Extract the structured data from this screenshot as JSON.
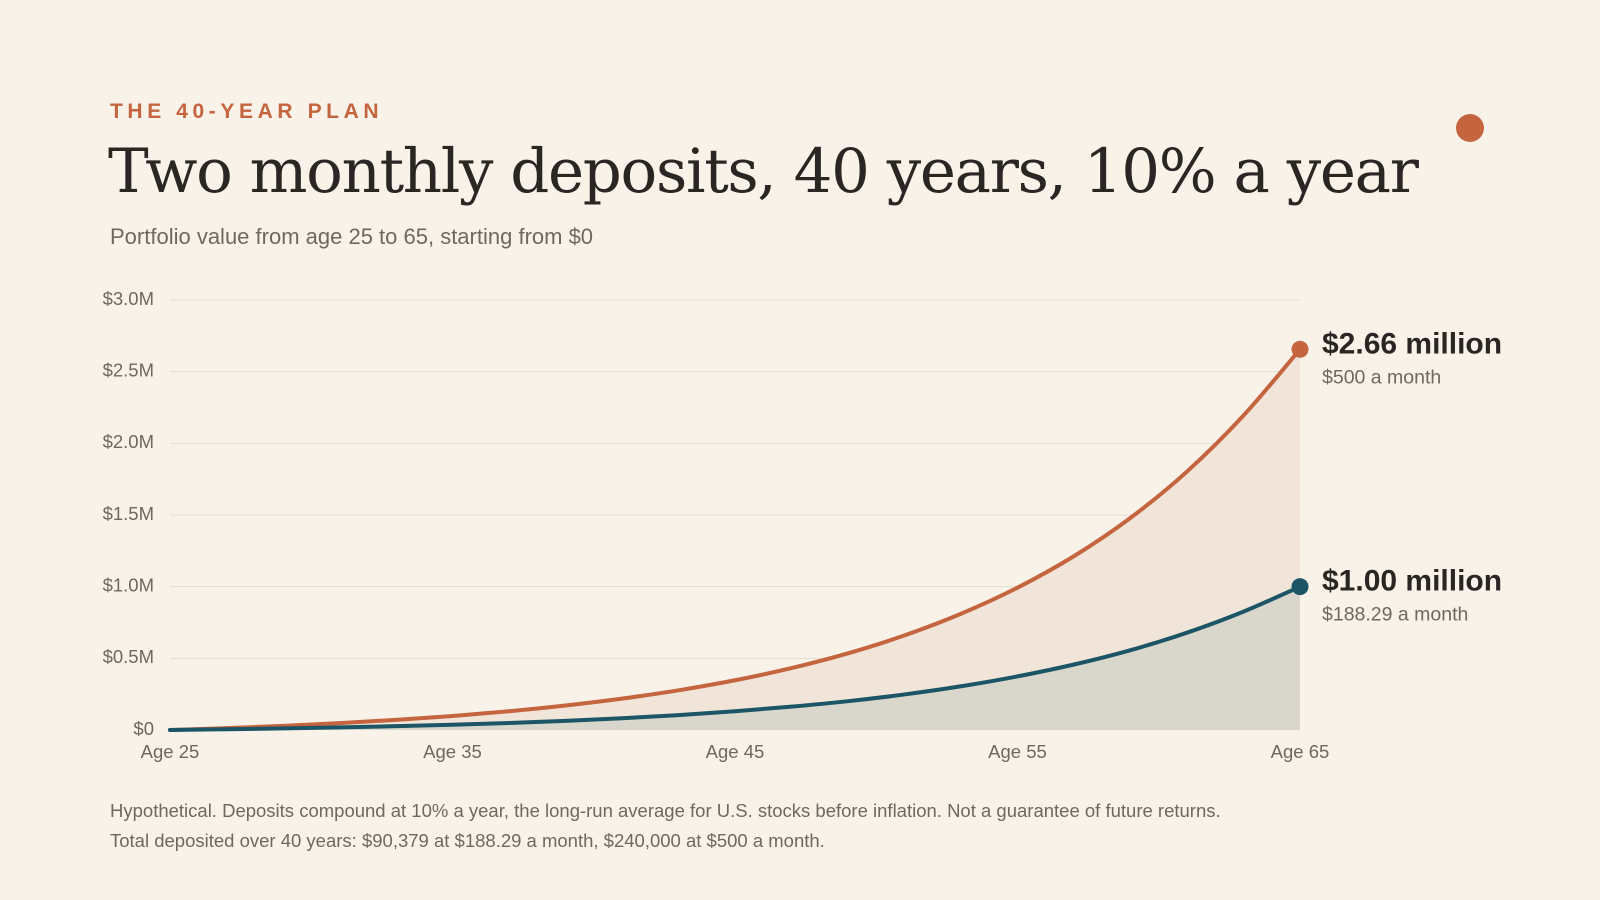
{
  "eyebrow": "THE 40-YEAR PLAN",
  "title": "Two monthly deposits, 40 years, 10% a year",
  "subtitle": "Portfolio value from age 25 to 65, starting from $0",
  "footnote": {
    "line1": "Hypothetical. Deposits compound at 10% a year, the long-run average for U.S. stocks before inflation. Not a guarantee of future returns.",
    "line2": "Total deposited over 40 years: $90,379 at $188.29 a month, $240,000 at $500 a month."
  },
  "colors": {
    "background": "#f8f2e8",
    "accent": "#c4653f",
    "series_high": "#c4653f",
    "series_low": "#1b5566",
    "fill_high": "#f1e4d8",
    "fill_low": "#d9d6cb",
    "gridline": "#e3ddd2",
    "text_dark": "#2a2622",
    "text_muted": "#6e6860"
  },
  "chart_data": {
    "type": "area",
    "title": "Two monthly deposits, 40 years, 10% a year",
    "subtitle": "Portfolio value from age 25 to 65, starting from $0",
    "xlabel": "",
    "ylabel": "",
    "x_tick_labels": [
      "Age 25",
      "Age 35",
      "Age 45",
      "Age 55",
      "Age 65"
    ],
    "x_ticks": [
      25,
      35,
      45,
      55,
      65
    ],
    "y_tick_labels": [
      "$0",
      "$0.5M",
      "$1.0M",
      "$1.5M",
      "$2.0M",
      "$2.5M",
      "$3.0M"
    ],
    "y_ticks": [
      0,
      0.5,
      1.0,
      1.5,
      2.0,
      2.5,
      3.0
    ],
    "xlim": [
      25,
      65
    ],
    "ylim": [
      0,
      3.0
    ],
    "y_units": "millions of dollars",
    "grid": "horizontal",
    "legend": "direct labels at line ends (right)",
    "x": [
      25,
      27,
      29,
      31,
      33,
      35,
      37,
      39,
      41,
      43,
      45,
      47,
      49,
      51,
      53,
      55,
      57,
      59,
      61,
      63,
      65
    ],
    "series": [
      {
        "end_value_label": "$2.66 million",
        "end_sub_label": "$500 a month",
        "values": [
          0,
          0.013,
          0.029,
          0.048,
          0.071,
          0.098,
          0.131,
          0.171,
          0.219,
          0.277,
          0.347,
          0.432,
          0.535,
          0.66,
          0.811,
          0.993,
          1.213,
          1.48,
          1.803,
          2.194,
          2.656
        ]
      },
      {
        "end_value_label": "$1.00 million",
        "end_sub_label": "$188.29 a month",
        "values": [
          0,
          0.005,
          0.011,
          0.018,
          0.027,
          0.037,
          0.049,
          0.064,
          0.082,
          0.104,
          0.131,
          0.163,
          0.201,
          0.248,
          0.305,
          0.374,
          0.457,
          0.557,
          0.679,
          0.826,
          1.0
        ]
      }
    ]
  }
}
